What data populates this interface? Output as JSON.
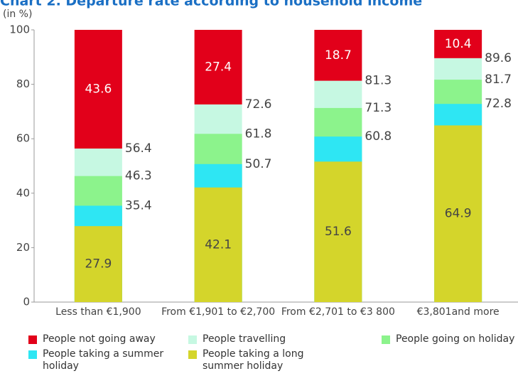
{
  "chart_data": {
    "type": "bar",
    "title": "Chart 2. Departure rate according to household income",
    "y_label": "(in %)",
    "categories": [
      "Less than €1,900",
      "From €1,901 to €2,700",
      "From €2,701 to €3 800",
      "€3,801and more"
    ],
    "series": [
      {
        "name": "People not going away",
        "color": "#e2001a",
        "values": [
          43.6,
          27.4,
          18.7,
          10.4
        ]
      },
      {
        "name": "People travelling",
        "color": "#c6f8e2",
        "values": [
          56.4,
          72.6,
          81.3,
          89.6
        ]
      },
      {
        "name": "People going on holiday",
        "color": "#8cf38c",
        "values": [
          46.3,
          61.8,
          71.3,
          81.7
        ]
      },
      {
        "name": "People taking a summer holiday",
        "color": "#2ee6f3",
        "values": [
          35.4,
          50.7,
          60.8,
          72.8
        ]
      },
      {
        "name": "People taking a long summer holiday",
        "color": "#d4d52b",
        "values": [
          27.9,
          42.1,
          51.6,
          64.9
        ]
      }
    ],
    "ylim": [
      0,
      100
    ],
    "yticks": [
      0,
      20,
      40,
      60,
      80,
      100
    ]
  }
}
